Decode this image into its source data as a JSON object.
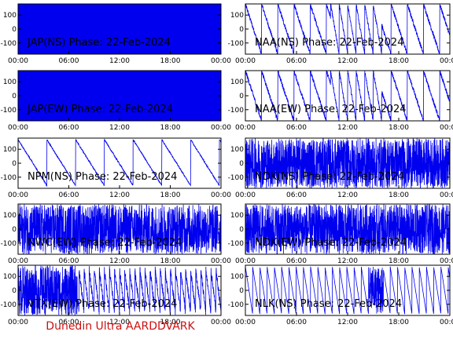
{
  "footer_text": "Dunedin Ultra AARDDVARK",
  "line_color": "#0000ee",
  "footer_color": "#cc1111",
  "chart_data": [
    {
      "type": "line",
      "title": "JAP(NS) Phase: 22-Feb-2024",
      "pattern": "solid",
      "xticks": [
        "00:00",
        "06:00",
        "12:00",
        "18:00",
        "00:00"
      ],
      "yticks": [
        "100",
        "0",
        "-100"
      ],
      "ylim": [
        -180,
        180
      ],
      "xlim": [
        0,
        24
      ]
    },
    {
      "type": "line",
      "title": "NAA(NS) Phase: 22-Feb-2024",
      "pattern": "sawtooth",
      "xticks": [
        "00:00",
        "06:00",
        "12:00",
        "18:00",
        "00:00"
      ],
      "yticks": [
        "100",
        "0",
        "-100"
      ],
      "ylim": [
        -180,
        180
      ],
      "xlim": [
        0,
        24
      ]
    },
    {
      "type": "line",
      "title": "JAP(EW) Phase: 22-Feb-2024",
      "pattern": "solid",
      "xticks": [
        "00:00",
        "06:00",
        "12:00",
        "18:00",
        "00:00"
      ],
      "yticks": [
        "100",
        "0",
        "-100"
      ],
      "ylim": [
        -180,
        180
      ],
      "xlim": [
        0,
        24
      ]
    },
    {
      "type": "line",
      "title": "NAA(EW) Phase: 22-Feb-2024",
      "pattern": "sawtooth",
      "xticks": [
        "00:00",
        "06:00",
        "12:00",
        "18:00",
        "00:00"
      ],
      "yticks": [
        "100",
        "0",
        "-100"
      ],
      "ylim": [
        -180,
        180
      ],
      "xlim": [
        0,
        24
      ]
    },
    {
      "type": "line",
      "title": "NPM(NS) Phase: 22-Feb-2024",
      "pattern": "slow",
      "xticks": [
        "00:00",
        "06:00",
        "12:00",
        "18:00",
        "00:00"
      ],
      "yticks": [
        "100",
        "0",
        "-100"
      ],
      "ylim": [
        -180,
        180
      ],
      "xlim": [
        0,
        24
      ]
    },
    {
      "type": "line",
      "title": "NDK(NS) Phase: 22-Feb-2024",
      "pattern": "dense",
      "xticks": [
        "00:00",
        "06:00",
        "12:00",
        "18:00",
        "00:00"
      ],
      "yticks": [
        "100",
        "0",
        "-100"
      ],
      "ylim": [
        -180,
        180
      ],
      "xlim": [
        0,
        24
      ]
    },
    {
      "type": "line",
      "title": "NWC(EW) Phase: 22-Feb-2024",
      "pattern": "dense",
      "xticks": [
        "00:00",
        "06:00",
        "12:00",
        "18:00",
        "00:00"
      ],
      "yticks": [
        "100",
        "0",
        "-100"
      ],
      "ylim": [
        -180,
        180
      ],
      "xlim": [
        0,
        24
      ]
    },
    {
      "type": "line",
      "title": "NDK(EW) Phase: 22-Feb-2024",
      "pattern": "dense",
      "xticks": [
        "00:00",
        "06:00",
        "12:00",
        "18:00",
        "00:00"
      ],
      "yticks": [
        "100",
        "0",
        "-100"
      ],
      "ylim": [
        -180,
        180
      ],
      "xlim": [
        0,
        24
      ]
    },
    {
      "type": "line",
      "title": "VTX(EW) Phase: 22-Feb-2024",
      "pattern": "mixed",
      "xticks": [
        "00:00",
        "06:00",
        "12:00",
        "18:00",
        "00:00"
      ],
      "yticks": [
        "100",
        "0",
        "-100"
      ],
      "ylim": [
        -180,
        180
      ],
      "xlim": [
        0,
        24
      ]
    },
    {
      "type": "line",
      "title": "NLK(NS) Phase: 22-Feb-2024",
      "pattern": "sawtooth_fast",
      "xticks": [
        "00:00",
        "06:00",
        "12:00",
        "18:00",
        "00:00"
      ],
      "yticks": [
        "100",
        "0",
        "-100"
      ],
      "ylim": [
        -180,
        180
      ],
      "xlim": [
        0,
        24
      ]
    }
  ]
}
